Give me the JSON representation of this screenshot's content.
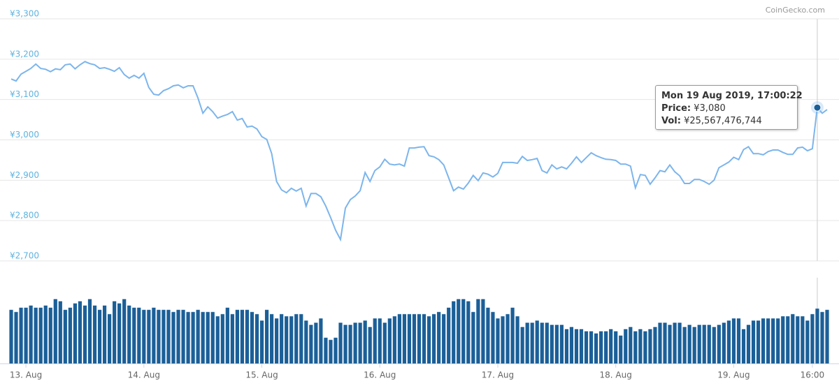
{
  "chart_data": {
    "type": "line",
    "credit": "CoinGecko.com",
    "categories": [
      null,
      null,
      null,
      "13. Aug",
      null,
      null,
      null,
      null,
      null,
      null,
      null,
      null,
      null,
      null,
      null,
      null,
      null,
      null,
      null,
      null,
      null,
      null,
      null,
      null,
      null,
      null,
      null,
      "14. Aug",
      null,
      null,
      null,
      null,
      null,
      null,
      null,
      null,
      null,
      null,
      null,
      null,
      null,
      null,
      null,
      null,
      null,
      null,
      null,
      null,
      null,
      null,
      null,
      "15. Aug",
      null,
      null,
      null,
      null,
      null,
      null,
      null,
      null,
      null,
      null,
      null,
      null,
      null,
      null,
      null,
      null,
      null,
      null,
      null,
      null,
      null,
      null,
      null,
      "16. Aug",
      null,
      null,
      null,
      null,
      null,
      null,
      null,
      null,
      null,
      null,
      null,
      null,
      null,
      null,
      null,
      null,
      null,
      null,
      null,
      null,
      null,
      null,
      null,
      "17. Aug",
      null,
      null,
      null,
      null,
      null,
      null,
      null,
      null,
      null,
      null,
      null,
      null,
      null,
      null,
      null,
      null,
      null,
      null,
      null,
      null,
      null,
      null,
      null,
      "18. Aug",
      null,
      null,
      null,
      null,
      null,
      null,
      null,
      null,
      null,
      null,
      null,
      null,
      null,
      null,
      null,
      null,
      null,
      null,
      null,
      null,
      null,
      null,
      null,
      "19. Aug",
      null,
      null,
      null,
      null,
      null,
      null,
      null,
      null,
      null,
      null,
      null,
      null,
      null,
      null,
      null,
      "16:00",
      null,
      null,
      null
    ],
    "series": [
      {
        "color": "#7cb5ec",
        "values": [
          3151,
          3146,
          3163,
          3170,
          3177,
          3188,
          3177,
          3175,
          3169,
          3176,
          3174,
          3186,
          3188,
          3176,
          3186,
          3194,
          3189,
          3186,
          3177,
          3179,
          3175,
          3170,
          3179,
          3162,
          3153,
          3160,
          3153,
          3165,
          3130,
          3113,
          3111,
          3122,
          3127,
          3134,
          3136,
          3129,
          3134,
          3134,
          3104,
          3066,
          3082,
          3070,
          3054,
          3059,
          3063,
          3070,
          3049,
          3053,
          3032,
          3034,
          3027,
          3008,
          3001,
          2966,
          2897,
          2876,
          2869,
          2880,
          2873,
          2880,
          2836,
          2867,
          2867,
          2859,
          2836,
          2807,
          2776,
          2753,
          2831,
          2852,
          2861,
          2874,
          2919,
          2897,
          2924,
          2933,
          2952,
          2940,
          2938,
          2940,
          2935,
          2980,
          2980,
          2982,
          2983,
          2961,
          2958,
          2951,
          2938,
          2906,
          2874,
          2883,
          2878,
          2893,
          2912,
          2899,
          2918,
          2915,
          2908,
          2917,
          2944,
          2944,
          2944,
          2942,
          2959,
          2949,
          2951,
          2954,
          2924,
          2918,
          2938,
          2928,
          2933,
          2928,
          2942,
          2958,
          2944,
          2956,
          2968,
          2961,
          2956,
          2952,
          2951,
          2949,
          2940,
          2940,
          2935,
          2881,
          2914,
          2912,
          2890,
          2906,
          2924,
          2921,
          2938,
          2921,
          2911,
          2892,
          2892,
          2902,
          2902,
          2897,
          2890,
          2900,
          2931,
          2938,
          2945,
          2957,
          2951,
          2976,
          2983,
          2966,
          2966,
          2963,
          2971,
          2975,
          2975,
          2969,
          2964,
          2964,
          2980,
          2982,
          2973,
          2978,
          3080,
          3066,
          3075
        ]
      },
      {
        "type": "bar",
        "axis": "y2",
        "color": "#1b5f98",
        "values": [
          25000000000.0,
          24000000000.0,
          26000000000.0,
          26000000000.0,
          27000000000.0,
          26000000000.0,
          26000000000.0,
          27000000000.0,
          26000000000.0,
          30000000000.0,
          29000000000.0,
          25000000000.0,
          26000000000.0,
          28000000000.0,
          29000000000.0,
          27000000000.0,
          30000000000.0,
          27000000000.0,
          25000000000.0,
          27000000000.0,
          23000000000.0,
          29000000000.0,
          28000000000.0,
          30000000000.0,
          27000000000.0,
          26000000000.0,
          26000000000.0,
          25000000000.0,
          25000000000.0,
          26000000000.0,
          25000000000.0,
          25000000000.0,
          25000000000.0,
          24000000000.0,
          25000000000.0,
          25000000000.0,
          24000000000.0,
          24000000000.0,
          25000000000.0,
          24000000000.0,
          24000000000.0,
          24000000000.0,
          22000000000.0,
          23000000000.0,
          26000000000.0,
          23000000000.0,
          25000000000.0,
          25000000000.0,
          25000000000.0,
          24000000000.0,
          23000000000.0,
          20000000000.0,
          25000000000.0,
          23000000000.0,
          21000000000.0,
          23000000000.0,
          22000000000.0,
          22000000000.0,
          23000000000.0,
          23000000000.0,
          20000000000.0,
          18000000000.0,
          19000000000.0,
          21000000000.0,
          12000000000.0,
          11000000000.0,
          12000000000.0,
          19000000000.0,
          18000000000.0,
          18000000000.0,
          19000000000.0,
          19000000000.0,
          20000000000.0,
          17000000000.0,
          21000000000.0,
          21000000000.0,
          19000000000.0,
          21000000000.0,
          22000000000.0,
          23000000000.0,
          23000000000.0,
          23000000000.0,
          23000000000.0,
          23000000000.0,
          23000000000.0,
          22000000000.0,
          23000000000.0,
          24000000000.0,
          23000000000.0,
          26000000000.0,
          29000000000.0,
          30000000000.0,
          30000000000.0,
          29000000000.0,
          24000000000.0,
          30000000000.0,
          30000000000.0,
          26000000000.0,
          24000000000.0,
          21000000000.0,
          22000000000.0,
          23000000000.0,
          26000000000.0,
          22000000000.0,
          17000000000.0,
          19000000000.0,
          19000000000.0,
          20000000000.0,
          19000000000.0,
          19000000000.0,
          18000000000.0,
          18000000000.0,
          18000000000.0,
          16000000000.0,
          17000000000.0,
          16000000000.0,
          16000000000.0,
          15000000000.0,
          15000000000.0,
          14000000000.0,
          15000000000.0,
          15000000000.0,
          16000000000.0,
          15000000000.0,
          13000000000.0,
          16000000000.0,
          17000000000.0,
          15000000000.0,
          16000000000.0,
          15000000000.0,
          16000000000.0,
          17000000000.0,
          19000000000.0,
          19000000000.0,
          18000000000.0,
          19000000000.0,
          19000000000.0,
          17000000000.0,
          18000000000.0,
          17000000000.0,
          18000000000.0,
          18000000000.0,
          18000000000.0,
          17000000000.0,
          18000000000.0,
          19000000000.0,
          20000000000.0,
          21000000000.0,
          21000000000.0,
          16000000000.0,
          18000000000.0,
          20000000000.0,
          20000000000.0,
          21000000000.0,
          21000000000.0,
          21000000000.0,
          21000000000.0,
          22000000000.0,
          22000000000.0,
          23000000000.0,
          22000000000.0,
          22000000000.0,
          20000000000.0,
          23000000000.0,
          25567476744,
          24000000000.0,
          25000000000.0
        ]
      }
    ],
    "ylim": [
      2700,
      3300
    ],
    "yticks": [
      {
        "value": 2700,
        "label": "¥2,700"
      },
      {
        "value": 2800,
        "label": "¥2,800"
      },
      {
        "value": 2900,
        "label": "¥2,900"
      },
      {
        "value": 3000,
        "label": "¥3,000"
      },
      {
        "value": 3100,
        "label": "¥3,100"
      },
      {
        "value": 3200,
        "label": "¥3,200"
      },
      {
        "value": 3300,
        "label": "¥3,300"
      }
    ],
    "y2lim": [
      0,
      40000000000.0
    ],
    "grid": true,
    "tooltip": {
      "index": 164,
      "title": "Mon 19 Aug 2019, 17:00:22",
      "price_label": "Price:",
      "price": "¥3,080",
      "vol_label": "Vol:",
      "vol": "¥25,567,476,744"
    }
  }
}
